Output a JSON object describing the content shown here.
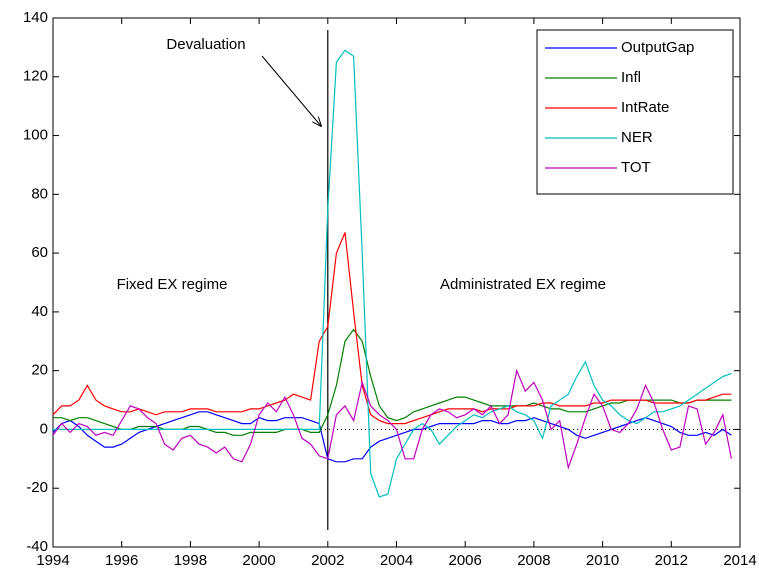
{
  "chart_data": {
    "type": "line",
    "x": [
      1994,
      1994.25,
      1994.5,
      1994.75,
      1995,
      1995.25,
      1995.5,
      1995.75,
      1996,
      1996.25,
      1996.5,
      1996.75,
      1997,
      1997.25,
      1997.5,
      1997.75,
      1998,
      1998.25,
      1998.5,
      1998.75,
      1999,
      1999.25,
      1999.5,
      1999.75,
      2000,
      2000.25,
      2000.5,
      2000.75,
      2001,
      2001.25,
      2001.5,
      2001.75,
      2002,
      2002.25,
      2002.5,
      2002.75,
      2003,
      2003.25,
      2003.5,
      2003.75,
      2004,
      2004.25,
      2004.5,
      2004.75,
      2005,
      2005.25,
      2005.5,
      2005.75,
      2006,
      2006.25,
      2006.5,
      2006.75,
      2007,
      2007.25,
      2007.5,
      2007.75,
      2008,
      2008.25,
      2008.5,
      2008.75,
      2009,
      2009.25,
      2009.5,
      2009.75,
      2010,
      2010.25,
      2010.5,
      2010.75,
      2011,
      2011.25,
      2011.5,
      2011.75,
      2012,
      2012.25,
      2012.5,
      2012.75,
      2013,
      2013.25,
      2013.5,
      2013.75
    ],
    "series": [
      {
        "name": "OutputGap",
        "color": "#0000ff",
        "values": [
          -1,
          2,
          3,
          1,
          -2,
          -4,
          -6,
          -6,
          -5,
          -3,
          -1,
          0,
          1,
          2,
          3,
          4,
          5,
          6,
          6,
          5,
          4,
          3,
          2,
          2,
          4,
          3,
          3,
          4,
          4,
          4,
          3,
          2,
          -10,
          -11,
          -11,
          -10,
          -10,
          -6,
          -4,
          -3,
          -2,
          -1,
          0,
          0,
          1,
          2,
          2,
          2,
          2,
          2,
          3,
          3,
          2,
          2,
          3,
          3,
          4,
          3,
          2,
          1,
          0,
          -2,
          -3,
          -2,
          -1,
          0,
          1,
          2,
          3,
          4,
          3,
          2,
          1,
          -1,
          -2,
          -2,
          -1,
          -2,
          0,
          -2
        ]
      },
      {
        "name": "Infl",
        "color": "#008000",
        "values": [
          4,
          4,
          3,
          4,
          4,
          3,
          2,
          1,
          0,
          0,
          1,
          1,
          1,
          0,
          0,
          0,
          1,
          1,
          0,
          -1,
          -1,
          -2,
          -2,
          -1,
          -1,
          -1,
          -1,
          0,
          0,
          0,
          -1,
          -1,
          5,
          15,
          30,
          34,
          30,
          18,
          8,
          4,
          3,
          4,
          6,
          7,
          8,
          9,
          10,
          11,
          11,
          10,
          9,
          8,
          8,
          8,
          8,
          8,
          9,
          8,
          7,
          7,
          6,
          6,
          6,
          7,
          8,
          9,
          9,
          10,
          10,
          10,
          10,
          10,
          10,
          9,
          9,
          10,
          10,
          10,
          10,
          10
        ]
      },
      {
        "name": "IntRate",
        "color": "#ff0000",
        "values": [
          5,
          8,
          8,
          10,
          15,
          10,
          8,
          7,
          6,
          6,
          7,
          6,
          5,
          6,
          6,
          6,
          7,
          7,
          7,
          6,
          6,
          6,
          6,
          7,
          7,
          8,
          9,
          10,
          12,
          11,
          10,
          30,
          35,
          60,
          67,
          40,
          15,
          5,
          3,
          2,
          2,
          2,
          3,
          4,
          5,
          6,
          7,
          7,
          7,
          7,
          6,
          7,
          7,
          7,
          8,
          8,
          8,
          9,
          9,
          8,
          8,
          8,
          8,
          9,
          9,
          10,
          10,
          10,
          10,
          10,
          9,
          9,
          9,
          9,
          9,
          10,
          10,
          11,
          12,
          12
        ]
      },
      {
        "name": "NER",
        "color": "#00bfbf",
        "values": [
          0,
          0,
          0,
          0,
          0,
          0,
          0,
          0,
          0,
          0,
          0,
          0,
          0,
          0,
          0,
          0,
          0,
          0,
          0,
          0,
          0,
          0,
          0,
          0,
          0,
          0,
          0,
          0,
          0,
          0,
          0,
          0,
          75,
          125,
          129,
          127,
          60,
          -15,
          -23,
          -22,
          -10,
          -5,
          0,
          2,
          0,
          -5,
          -2,
          1,
          3,
          5,
          4,
          6,
          7,
          8,
          6,
          5,
          3,
          -3,
          8,
          10,
          12,
          18,
          23,
          15,
          10,
          8,
          5,
          3,
          2,
          4,
          6,
          6,
          7,
          8,
          10,
          12,
          14,
          16,
          18,
          19
        ]
      },
      {
        "name": "TOT",
        "color": "#bf00bf",
        "values": [
          -2,
          2,
          -1,
          2,
          1,
          -2,
          -1,
          -2,
          3,
          8,
          7,
          4,
          2,
          -5,
          -7,
          -3,
          -2,
          -5,
          -6,
          -8,
          -6,
          -10,
          -11,
          -5,
          5,
          9,
          6,
          11,
          5,
          -3,
          -5,
          -9,
          -10,
          5,
          8,
          3,
          16,
          8,
          5,
          3,
          0,
          -10,
          -10,
          0,
          5,
          7,
          6,
          4,
          5,
          7,
          5,
          8,
          2,
          5,
          20,
          13,
          16,
          10,
          0,
          3,
          -13,
          -5,
          4,
          12,
          8,
          0,
          -1,
          2,
          7,
          15,
          9,
          0,
          -7,
          -6,
          8,
          7,
          -5,
          -1,
          5,
          -10
        ]
      }
    ],
    "xlim": [
      1994,
      2014
    ],
    "xticks": [
      1994,
      1996,
      1998,
      2000,
      2002,
      2004,
      2006,
      2008,
      2010,
      2012,
      2014
    ],
    "ylim": [
      -40,
      140
    ],
    "yticks": [
      -40,
      -20,
      0,
      20,
      40,
      60,
      80,
      100,
      120,
      140
    ],
    "events": [
      {
        "label": "Devaluation",
        "x": 2002
      }
    ],
    "annotations": [
      "Fixed EX regime",
      "Administrated EX regime"
    ],
    "legend": "northeast"
  }
}
